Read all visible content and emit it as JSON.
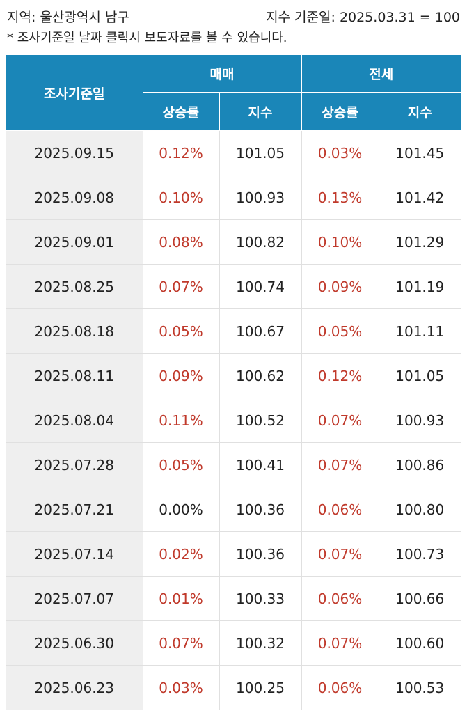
{
  "info": {
    "region": "지역: 울산광역시 남구",
    "base_date": "지수 기준일: 2025.03.31 = 100",
    "note": "* 조사기준일 날짜 클릭시 보도자료를 볼 수 있습니다."
  },
  "table": {
    "headers": {
      "survey_date": "조사기준일",
      "sale": "매매",
      "jeonse": "전세",
      "rate": "상승률",
      "index": "지수"
    },
    "colors": {
      "header_bg": "#1a86b8",
      "positive_rate": "#c0392b",
      "date_bg": "#efefef"
    },
    "rows": [
      {
        "date": "2025.09.15",
        "sale_rate": "0.12%",
        "sale_index": "101.05",
        "jeonse_rate": "0.03%",
        "jeonse_index": "101.45"
      },
      {
        "date": "2025.09.08",
        "sale_rate": "0.10%",
        "sale_index": "100.93",
        "jeonse_rate": "0.13%",
        "jeonse_index": "101.42"
      },
      {
        "date": "2025.09.01",
        "sale_rate": "0.08%",
        "sale_index": "100.82",
        "jeonse_rate": "0.10%",
        "jeonse_index": "101.29"
      },
      {
        "date": "2025.08.25",
        "sale_rate": "0.07%",
        "sale_index": "100.74",
        "jeonse_rate": "0.09%",
        "jeonse_index": "101.19"
      },
      {
        "date": "2025.08.18",
        "sale_rate": "0.05%",
        "sale_index": "100.67",
        "jeonse_rate": "0.05%",
        "jeonse_index": "101.11"
      },
      {
        "date": "2025.08.11",
        "sale_rate": "0.09%",
        "sale_index": "100.62",
        "jeonse_rate": "0.12%",
        "jeonse_index": "101.05"
      },
      {
        "date": "2025.08.04",
        "sale_rate": "0.11%",
        "sale_index": "100.52",
        "jeonse_rate": "0.07%",
        "jeonse_index": "100.93"
      },
      {
        "date": "2025.07.28",
        "sale_rate": "0.05%",
        "sale_index": "100.41",
        "jeonse_rate": "0.07%",
        "jeonse_index": "100.86"
      },
      {
        "date": "2025.07.21",
        "sale_rate": "0.00%",
        "sale_index": "100.36",
        "jeonse_rate": "0.06%",
        "jeonse_index": "100.80"
      },
      {
        "date": "2025.07.14",
        "sale_rate": "0.02%",
        "sale_index": "100.36",
        "jeonse_rate": "0.07%",
        "jeonse_index": "100.73"
      },
      {
        "date": "2025.07.07",
        "sale_rate": "0.01%",
        "sale_index": "100.33",
        "jeonse_rate": "0.06%",
        "jeonse_index": "100.66"
      },
      {
        "date": "2025.06.30",
        "sale_rate": "0.07%",
        "sale_index": "100.32",
        "jeonse_rate": "0.07%",
        "jeonse_index": "100.60"
      },
      {
        "date": "2025.06.23",
        "sale_rate": "0.03%",
        "sale_index": "100.25",
        "jeonse_rate": "0.06%",
        "jeonse_index": "100.53"
      }
    ]
  }
}
